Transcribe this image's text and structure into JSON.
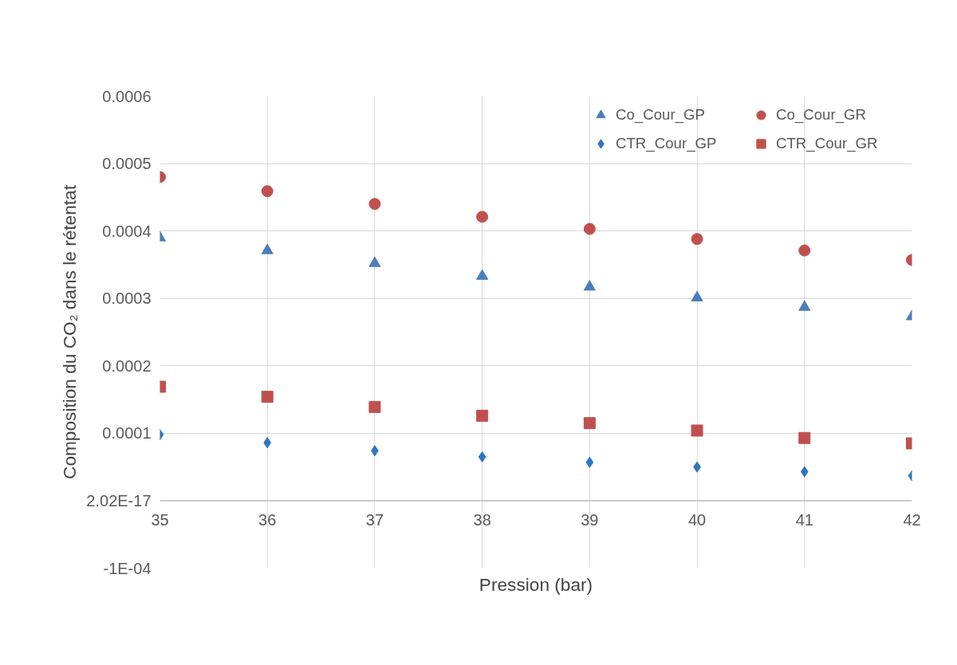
{
  "chart_data": {
    "type": "scatter",
    "xlabel": "Pression (bar)",
    "ylabel": "Composition du CO₂ dans le rétentat",
    "x": [
      35,
      36,
      37,
      38,
      39,
      40,
      41,
      42
    ],
    "series": [
      {
        "name": "Co_Cour_GP",
        "color": "#4a7ebb",
        "marker": "triangle",
        "values": [
          0.00039,
          0.000371,
          0.000352,
          0.000333,
          0.000317,
          0.000301,
          0.000287,
          0.000273
        ]
      },
      {
        "name": "Co_Cour_GR",
        "color": "#c0504d",
        "marker": "circle",
        "values": [
          0.00048,
          0.000459,
          0.00044,
          0.000421,
          0.000403,
          0.000388,
          0.000371,
          0.000357
        ]
      },
      {
        "name": "CTR_Cour_GP",
        "color": "#2e75c6",
        "marker": "diamond",
        "values": [
          9.8e-05,
          8.6e-05,
          7.4e-05,
          6.5e-05,
          5.7e-05,
          5e-05,
          4.3e-05,
          3.7e-05
        ]
      },
      {
        "name": "CTR_Cour_GR",
        "color": "#c0504d",
        "marker": "square",
        "values": [
          0.000169,
          0.000154,
          0.000139,
          0.000126,
          0.000115,
          0.000104,
          9.3e-05,
          8.5e-05
        ]
      }
    ],
    "xlim": [
      35,
      42
    ],
    "xticks": [
      35,
      36,
      37,
      38,
      39,
      40,
      41,
      42
    ],
    "ylim": [
      -0.0001,
      0.0006
    ],
    "yticks": [
      {
        "value": -0.0001,
        "label": "-1E-04"
      },
      {
        "value": 0,
        "label": "2.02E-17"
      },
      {
        "value": 0.0001,
        "label": "0.0001"
      },
      {
        "value": 0.0002,
        "label": "0.0002"
      },
      {
        "value": 0.0003,
        "label": "0.0003"
      },
      {
        "value": 0.0004,
        "label": "0.0004"
      },
      {
        "value": 0.0005,
        "label": "0.0005"
      },
      {
        "value": 0.0006,
        "label": "0.0006"
      }
    ],
    "grid": true,
    "legend": "top right"
  }
}
